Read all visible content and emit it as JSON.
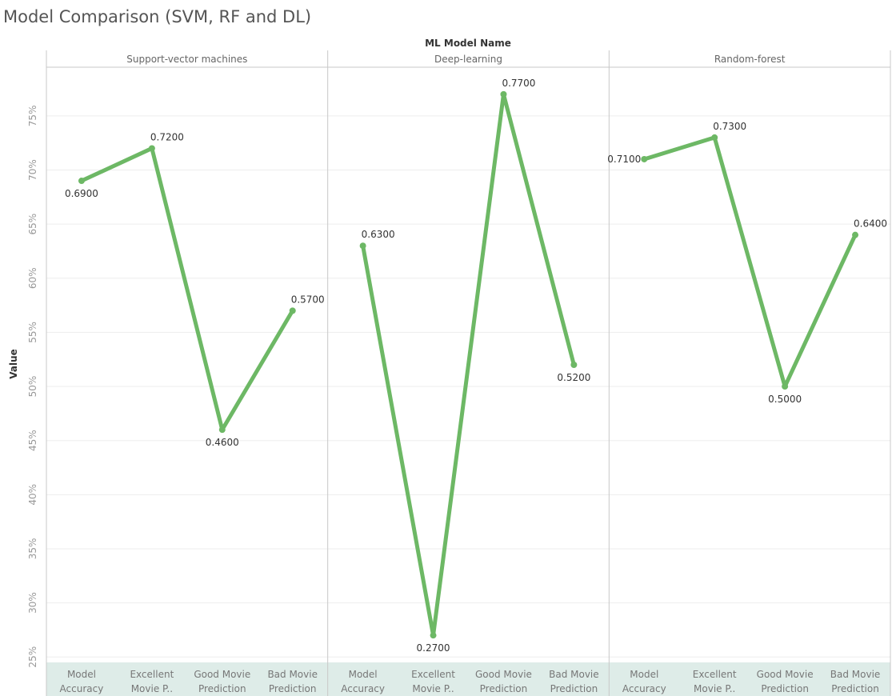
{
  "chart_data": {
    "type": "line",
    "title": "Model Comparison (SVM, RF and DL)",
    "column_header": "ML Model Name",
    "ylabel": "Value",
    "ylim": [
      0.245,
      0.795
    ],
    "yticks": [
      0.25,
      0.3,
      0.35,
      0.4,
      0.45,
      0.5,
      0.55,
      0.6,
      0.65,
      0.7,
      0.75
    ],
    "ytick_labels": [
      "25%",
      "30%",
      "35%",
      "40%",
      "45%",
      "50%",
      "55%",
      "60%",
      "65%",
      "70%",
      "75%"
    ],
    "x_categories": [
      [
        "Model",
        "Accuracy"
      ],
      [
        "Excellent",
        "Movie P.."
      ],
      [
        "Good Movie",
        "Prediction"
      ],
      [
        "Bad Movie",
        "Prediction"
      ]
    ],
    "panels": [
      {
        "name": "Support-vector machines",
        "values": [
          0.69,
          0.72,
          0.46,
          0.57
        ],
        "labels": [
          "0.6900",
          "0.7200",
          "0.4600",
          "0.5700"
        ],
        "label_pos": [
          "below",
          "above",
          "below",
          "above"
        ]
      },
      {
        "name": "Deep-learning",
        "values": [
          0.63,
          0.27,
          0.77,
          0.52
        ],
        "labels": [
          "0.6300",
          "0.2700",
          "0.7700",
          "0.5200"
        ],
        "label_pos": [
          "above",
          "below",
          "above",
          "below"
        ]
      },
      {
        "name": "Random-forest",
        "values": [
          0.71,
          0.73,
          0.5,
          0.64
        ],
        "labels": [
          "0.7100",
          "0.7300",
          "0.5000",
          "0.6400"
        ],
        "label_pos": [
          "left",
          "above",
          "below",
          "above"
        ]
      }
    ],
    "line_color": "#6db865",
    "axis_band_color": "#deece8",
    "grid": true
  }
}
